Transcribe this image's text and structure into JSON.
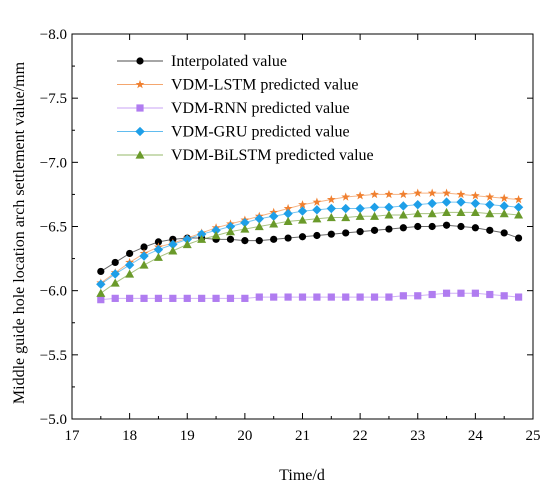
{
  "chart_data": {
    "type": "line",
    "title": "",
    "xlabel": "Time/d",
    "ylabel": "Middle guide hole location arch settlement value/mm",
    "xlim": [
      17,
      25
    ],
    "ylim": [
      -5.0,
      -8.0
    ],
    "y_axis_inverted": true,
    "grid": false,
    "legend_position": "top-left",
    "x_ticks": [
      17,
      18,
      19,
      20,
      21,
      22,
      23,
      24,
      25
    ],
    "x_tick_labels": [
      "17",
      "18",
      "19",
      "20",
      "21",
      "22",
      "23",
      "24",
      "25"
    ],
    "y_ticks": [
      -8.0,
      -7.5,
      -7.0,
      -6.5,
      -6.0,
      -5.5,
      -5.0
    ],
    "y_tick_labels": [
      "−8.0",
      "−7.5",
      "−7.0",
      "−6.5",
      "−6.0",
      "−5.5",
      "−5.0"
    ],
    "x": [
      17.5,
      17.75,
      18.0,
      18.25,
      18.5,
      18.75,
      19.0,
      19.25,
      19.5,
      19.75,
      20.0,
      20.25,
      20.5,
      20.75,
      21.0,
      21.25,
      21.5,
      21.75,
      22.0,
      22.25,
      22.5,
      22.75,
      23.0,
      23.25,
      23.5,
      23.75,
      24.0,
      24.25,
      24.5,
      24.75
    ],
    "series": [
      {
        "name": "Interpolated value",
        "color": "#000000",
        "marker": "circle",
        "values": [
          -6.15,
          -6.22,
          -6.29,
          -6.34,
          -6.38,
          -6.4,
          -6.41,
          -6.41,
          -6.4,
          -6.4,
          -6.39,
          -6.39,
          -6.4,
          -6.41,
          -6.42,
          -6.43,
          -6.44,
          -6.45,
          -6.46,
          -6.47,
          -6.48,
          -6.49,
          -6.5,
          -6.5,
          -6.51,
          -6.5,
          -6.49,
          -6.47,
          -6.45,
          -6.41
        ]
      },
      {
        "name": "VDM-LSTM predicted value",
        "color": "#f08030",
        "marker": "star",
        "values": [
          -6.06,
          -6.14,
          -6.22,
          -6.29,
          -6.34,
          -6.37,
          -6.41,
          -6.45,
          -6.49,
          -6.52,
          -6.55,
          -6.58,
          -6.61,
          -6.64,
          -6.67,
          -6.69,
          -6.71,
          -6.73,
          -6.74,
          -6.75,
          -6.75,
          -6.75,
          -6.76,
          -6.76,
          -6.76,
          -6.75,
          -6.74,
          -6.73,
          -6.72,
          -6.71
        ]
      },
      {
        "name": "VDM-RNN predicted value",
        "color": "#b07cf0",
        "marker": "square",
        "values": [
          -5.93,
          -5.94,
          -5.94,
          -5.94,
          -5.94,
          -5.94,
          -5.94,
          -5.94,
          -5.94,
          -5.94,
          -5.94,
          -5.95,
          -5.95,
          -5.95,
          -5.95,
          -5.95,
          -5.95,
          -5.95,
          -5.95,
          -5.95,
          -5.95,
          -5.96,
          -5.96,
          -5.97,
          -5.98,
          -5.98,
          -5.98,
          -5.97,
          -5.96,
          -5.95
        ]
      },
      {
        "name": "VDM-GRU predicted value",
        "color": "#1e9fe8",
        "marker": "diamond",
        "values": [
          -6.05,
          -6.13,
          -6.2,
          -6.27,
          -6.32,
          -6.36,
          -6.4,
          -6.44,
          -6.47,
          -6.5,
          -6.53,
          -6.56,
          -6.58,
          -6.6,
          -6.62,
          -6.63,
          -6.64,
          -6.64,
          -6.64,
          -6.65,
          -6.65,
          -6.66,
          -6.67,
          -6.68,
          -6.69,
          -6.69,
          -6.68,
          -6.67,
          -6.66,
          -6.65
        ]
      },
      {
        "name": "VDM-BiLSTM predicted value",
        "color": "#6a9a2a",
        "marker": "triangle",
        "values": [
          -5.98,
          -6.06,
          -6.13,
          -6.2,
          -6.26,
          -6.31,
          -6.36,
          -6.4,
          -6.43,
          -6.46,
          -6.48,
          -6.5,
          -6.52,
          -6.54,
          -6.55,
          -6.56,
          -6.57,
          -6.57,
          -6.58,
          -6.58,
          -6.59,
          -6.59,
          -6.6,
          -6.6,
          -6.61,
          -6.61,
          -6.61,
          -6.6,
          -6.6,
          -6.59
        ]
      }
    ]
  }
}
